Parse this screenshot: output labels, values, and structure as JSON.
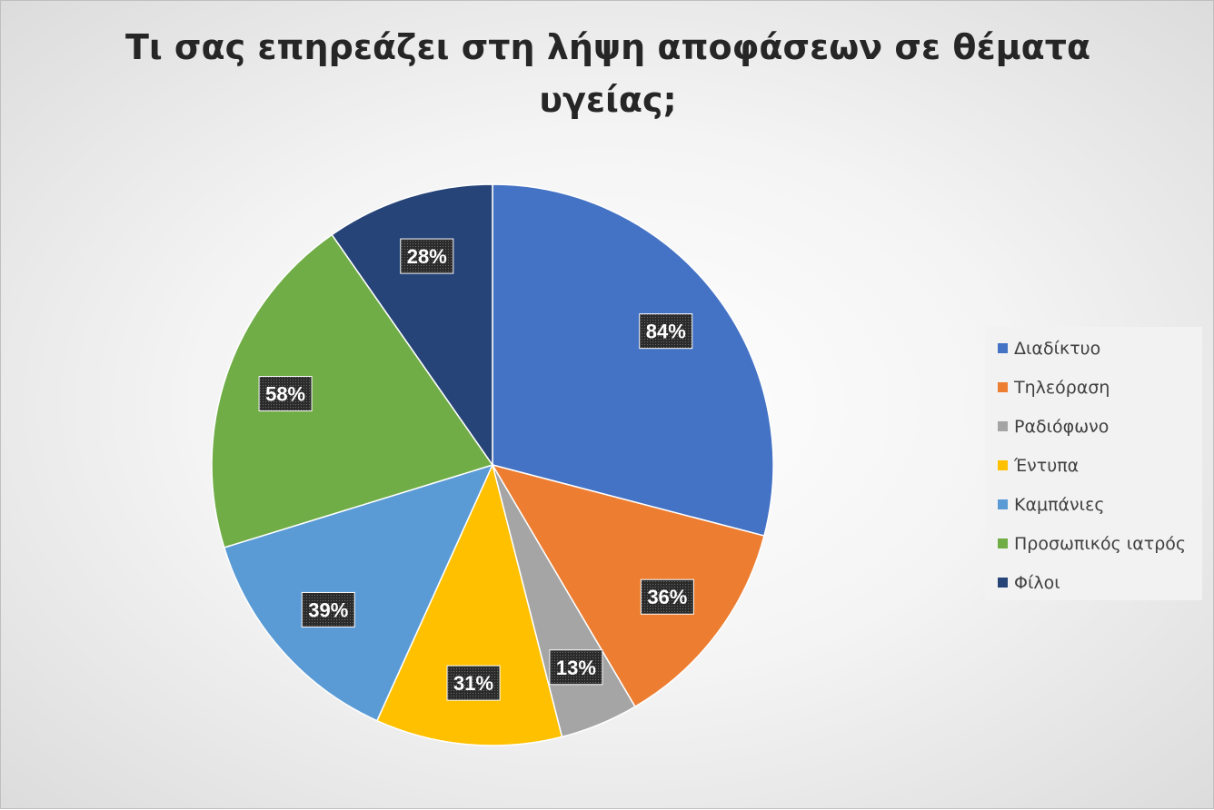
{
  "chart_data": {
    "type": "pie",
    "title": "Τι σας επηρεάζει στη λήψη αποφάσεων σε θέματα υγείας;",
    "categories": [
      "Διαδίκτυο",
      "Τηλεόραση",
      "Ραδιόφωνο",
      "Έντυπα",
      "Καμπάνιες",
      "Προσωπικός ιατρός",
      "Φίλοι"
    ],
    "values": [
      84,
      36,
      13,
      31,
      39,
      58,
      28
    ],
    "labels": [
      "84%",
      "36%",
      "13%",
      "31%",
      "39%",
      "58%",
      "28%"
    ],
    "colors": [
      "#4472C4",
      "#ED7D31",
      "#A5A5A5",
      "#FFC000",
      "#5B9BD5",
      "#70AD47",
      "#264478"
    ],
    "legend_position": "right"
  }
}
